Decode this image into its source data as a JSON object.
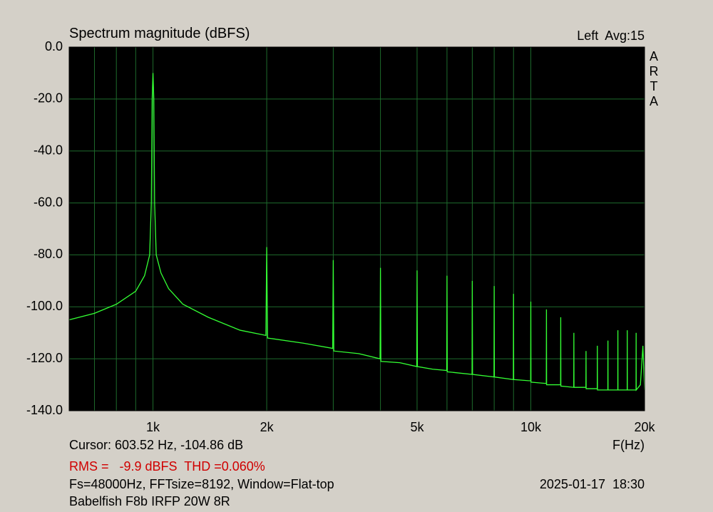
{
  "chart_data": {
    "type": "line",
    "title": "Spectrum magnitude (dBFS)",
    "channel": "Left  Avg:15",
    "brand": "ARTA",
    "x_label": "F(Hz)",
    "cursor": "Cursor: 603.52 Hz, -104.86 dB",
    "rms": "RMS =   -9.9 dBFS  THD =0.060%",
    "info": "Fs=48000Hz, FFTsize=8192, Window=Flat-top",
    "date": "2025-01-17  18:30",
    "label": "Babelfish F8b IRFP 20W 8R",
    "log_x": true,
    "grid": true,
    "color": "#33ff33",
    "xlim": [
      600,
      20000
    ],
    "ylim": [
      -140,
      0
    ],
    "xticks": [
      {
        "value": 1000,
        "label": "1k"
      },
      {
        "value": 2000,
        "label": "2k"
      },
      {
        "value": 5000,
        "label": "5k"
      },
      {
        "value": 10000,
        "label": "10k"
      },
      {
        "value": 20000,
        "label": "20k"
      }
    ],
    "xgrid": [
      700,
      800,
      900,
      1000,
      2000,
      3000,
      4000,
      5000,
      6000,
      7000,
      8000,
      9000,
      10000,
      20000
    ],
    "yticks": [
      {
        "value": 0,
        "label": "0.0"
      },
      {
        "value": -20,
        "label": "-20.0"
      },
      {
        "value": -40,
        "label": "-40.0"
      },
      {
        "value": -60,
        "label": "-60.0"
      },
      {
        "value": -80,
        "label": "-80.0"
      },
      {
        "value": -100,
        "label": "-100.0"
      },
      {
        "value": -120,
        "label": "-120.0"
      },
      {
        "value": -140,
        "label": "-140.0"
      }
    ],
    "x": [
      600,
      700,
      800,
      900,
      950,
      980,
      990,
      995,
      1000,
      1005,
      1010,
      1020,
      1050,
      1100,
      1200,
      1400,
      1700,
      1990,
      2000,
      2010,
      2500,
      2990,
      3000,
      3010,
      3500,
      3990,
      4000,
      4010,
      4500,
      4990,
      5000,
      5010,
      5500,
      5990,
      6000,
      6010,
      6990,
      7000,
      7010,
      7990,
      8000,
      8010,
      8990,
      9000,
      9010,
      9990,
      10000,
      10010,
      10990,
      11000,
      11010,
      11990,
      12000,
      12010,
      12990,
      13000,
      13010,
      13990,
      14000,
      14010,
      14990,
      15000,
      15010,
      15990,
      16000,
      16010,
      16990,
      17000,
      17010,
      17990,
      18000,
      18010,
      18990,
      19000,
      19010,
      19500,
      19800,
      20000
    ],
    "values": [
      -105,
      -102.5,
      -99,
      -94,
      -88,
      -80,
      -60,
      -20,
      -10,
      -20,
      -60,
      -80,
      -87,
      -93,
      -99,
      -104,
      -109,
      -111,
      -77,
      -112,
      -114,
      -116,
      -82,
      -117,
      -118,
      -120,
      -85,
      -121,
      -121.5,
      -123,
      -86,
      -123,
      -124,
      -124.5,
      -88,
      -125,
      -126,
      -90,
      -126,
      -127,
      -92,
      -127,
      -128,
      -95,
      -128,
      -128.5,
      -98,
      -129,
      -129.5,
      -101,
      -130,
      -130,
      -104,
      -130.5,
      -131,
      -110,
      -131,
      -131,
      -117,
      -131.5,
      -131.5,
      -115,
      -132,
      -132,
      -113,
      -132,
      -132,
      -109,
      -132,
      -132,
      -109,
      -132,
      -132,
      -110,
      -132,
      -130,
      -115,
      -132
    ]
  }
}
